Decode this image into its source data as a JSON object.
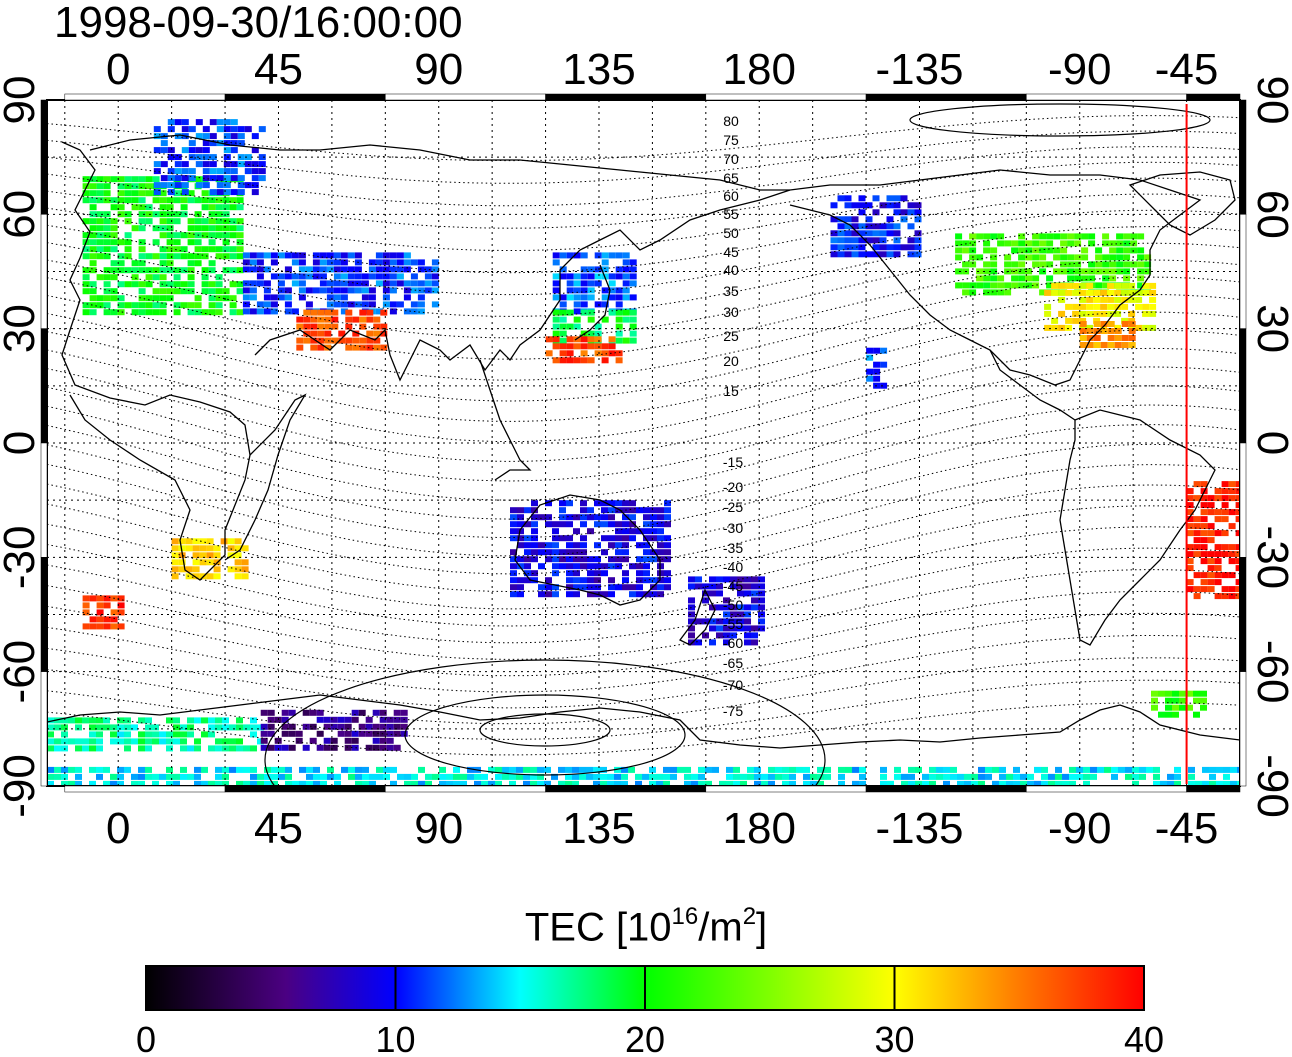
{
  "timestamp": "1998-09-30/16:00:00",
  "colorbar": {
    "title_prefix": "TEC  [10",
    "title_exp1": "16",
    "title_mid": "/m",
    "title_exp2": "2",
    "title_suffix": "]",
    "min": 0,
    "max": 40,
    "tick_labels": [
      "0",
      "10",
      "20",
      "30",
      "40"
    ],
    "colormap_stops": [
      "#000000",
      "#4b0082",
      "#0000ff",
      "#00ffff",
      "#00ff00",
      "#ffff00",
      "#ff7f00",
      "#ff0000"
    ]
  },
  "map": {
    "lon_tick_labels": [
      "0",
      "45",
      "90",
      "135",
      "180",
      "-135",
      "-90",
      "-45"
    ],
    "lat_tick_labels": [
      "90",
      "60",
      "30",
      "0",
      "-30",
      "-60",
      "-90"
    ],
    "magnetic_lat_labels_north": [
      "80",
      "75",
      "70",
      "65",
      "60",
      "55",
      "50",
      "45",
      "40",
      "35",
      "30",
      "25",
      "20",
      "15"
    ],
    "magnetic_lat_labels_south": [
      "-15",
      "-20",
      "-25",
      "-30",
      "-35",
      "-40",
      "-45",
      "-50",
      "-55",
      "-60",
      "-65",
      "-70",
      "-75"
    ],
    "terminator_longitude": -60,
    "terminator_color": "#ff0000"
  },
  "chart_data": {
    "type": "heatmap",
    "title": "1998-09-30/16:00:00",
    "xlabel": "",
    "ylabel": "",
    "xlim_lon": [
      -20,
      315
    ],
    "ylim_lat": [
      -90,
      90
    ],
    "value_range": [
      0,
      40
    ],
    "regions": [
      {
        "lon": [
          -10,
          35
        ],
        "lat": [
          35,
          70
        ],
        "value": 20
      },
      {
        "lon": [
          10,
          40
        ],
        "lat": [
          65,
          85
        ],
        "value": 11
      },
      {
        "lon": [
          35,
          90
        ],
        "lat": [
          35,
          50
        ],
        "value": 11
      },
      {
        "lon": [
          50,
          75
        ],
        "lat": [
          25,
          35
        ],
        "value": 37
      },
      {
        "lon": [
          122,
          145
        ],
        "lat": [
          35,
          50
        ],
        "value": 12
      },
      {
        "lon": [
          122,
          145
        ],
        "lat": [
          26,
          35
        ],
        "value": 19
      },
      {
        "lon": [
          120,
          140
        ],
        "lat": [
          22,
          28
        ],
        "value": 37
      },
      {
        "lon": [
          -125,
          -70
        ],
        "lat": [
          40,
          55
        ],
        "value": 22
      },
      {
        "lon": [
          -100,
          -70
        ],
        "lat": [
          30,
          42
        ],
        "value": 30
      },
      {
        "lon": [
          -90,
          -75
        ],
        "lat": [
          25,
          32
        ],
        "value": 34
      },
      {
        "lon": [
          -60,
          -40
        ],
        "lat": [
          -40,
          -10
        ],
        "value": 39
      },
      {
        "lon": [
          -70,
          -55
        ],
        "lat": [
          -72,
          -65
        ],
        "value": 22
      },
      {
        "lon": [
          -160,
          -135
        ],
        "lat": [
          50,
          65
        ],
        "value": 10
      },
      {
        "lon": [
          -150,
          -145
        ],
        "lat": [
          15,
          25
        ],
        "value": 12
      },
      {
        "lon": [
          110,
          155
        ],
        "lat": [
          -40,
          -15
        ],
        "value": 9
      },
      {
        "lon": [
          160,
          180
        ],
        "lat": [
          -52,
          -35
        ],
        "value": 9
      },
      {
        "lon": [
          15,
          35
        ],
        "lat": [
          -35,
          -25
        ],
        "value": 32
      },
      {
        "lon": [
          -10,
          0
        ],
        "lat": [
          -48,
          -40
        ],
        "value": 38
      },
      {
        "lon": [
          -20,
          40
        ],
        "lat": [
          -80,
          -72
        ],
        "value": 17
      },
      {
        "lon": [
          40,
          80
        ],
        "lat": [
          -80,
          -70
        ],
        "value": 6
      },
      {
        "lon": [
          -20,
          315
        ],
        "lat": [
          -90,
          -85
        ],
        "value": 15
      }
    ]
  }
}
